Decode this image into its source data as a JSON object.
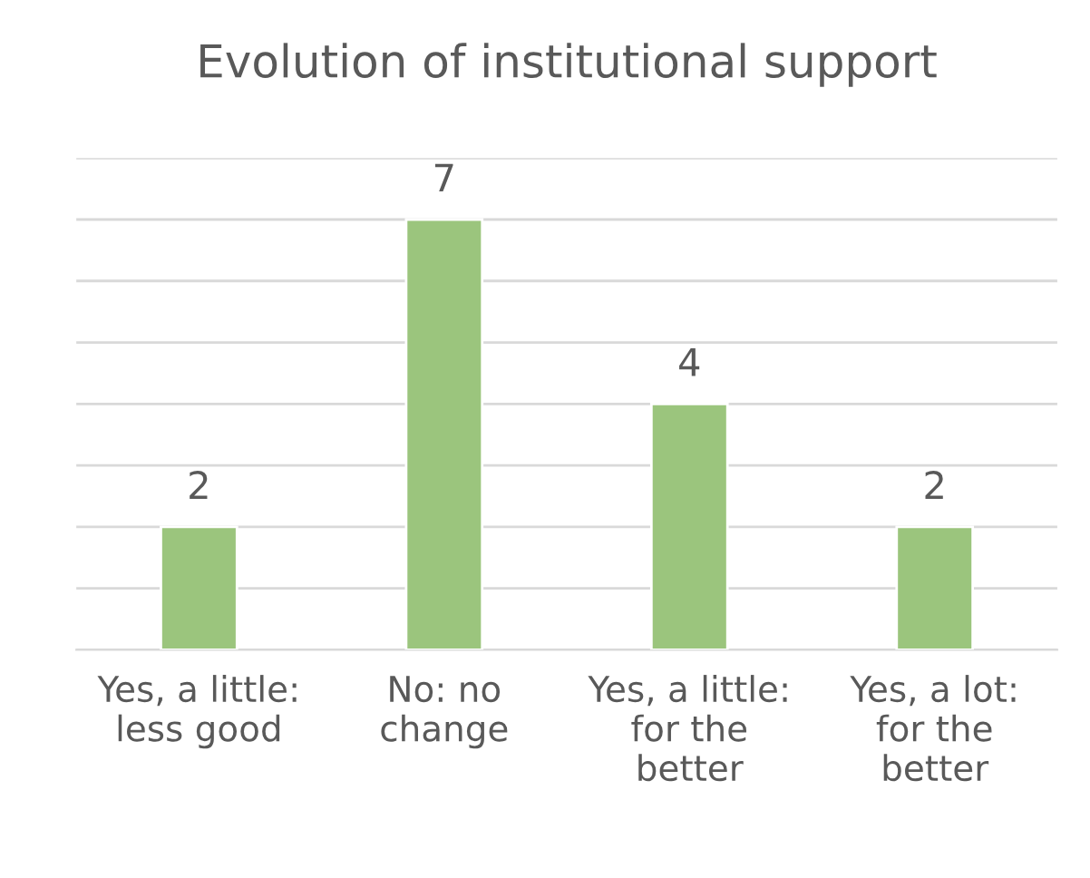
{
  "chart_data": {
    "type": "bar",
    "title": "Evolution of institutional support",
    "categories": [
      "Yes, a little:\nless good",
      "No: no\nchange",
      "Yes, a little:\nfor the\nbetter",
      "Yes, a lot:\nfor the\nbetter"
    ],
    "values": [
      2,
      7,
      4,
      2
    ],
    "color": "#9bc57d",
    "data_labels": true,
    "ylim": [
      0,
      8
    ],
    "yticks": [
      {
        "value": 0,
        "label": null
      },
      {
        "value": 1,
        "label": null
      },
      {
        "value": 2,
        "label": null
      },
      {
        "value": 3,
        "label": null
      },
      {
        "value": 4,
        "label": null
      },
      {
        "value": 5,
        "label": null
      },
      {
        "value": 6,
        "label": null
      },
      {
        "value": 7,
        "label": null
      },
      {
        "value": 8,
        "label": null
      }
    ],
    "grid": "y",
    "tick_labels": "x"
  }
}
